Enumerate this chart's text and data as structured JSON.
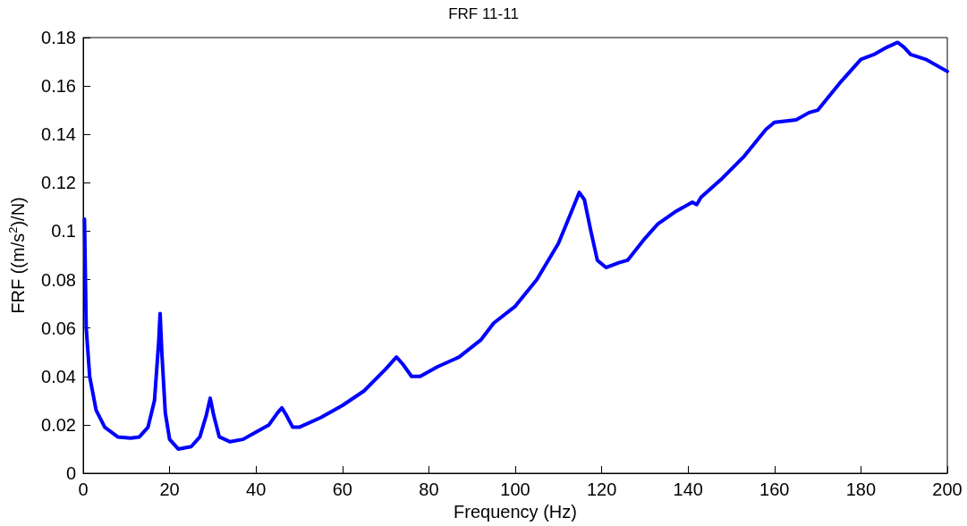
{
  "chart_data": {
    "type": "line",
    "title": "FRF 11-11",
    "xlabel": "Frequency (Hz)",
    "ylabel": "FRF ((m/s$^{2}$)/N)",
    "xlim": [
      0,
      200
    ],
    "xticks": [
      0,
      20,
      40,
      60,
      80,
      100,
      120,
      140,
      160,
      180,
      200
    ],
    "ylim": [
      0,
      0.18
    ],
    "yticks": [
      0,
      0.02,
      0.04,
      0.06,
      0.08,
      0.1,
      0.12,
      0.14,
      0.16,
      0.18
    ],
    "grid": false,
    "marker": "none",
    "line_style": "solid",
    "series": [
      {
        "color": "#0000ff",
        "x": [
          0.3,
          0.7,
          1.5,
          3,
          5,
          8,
          11,
          13,
          15,
          16.5,
          17.5,
          17.8,
          18.2,
          19,
          20,
          22,
          25,
          27,
          28.5,
          29.4,
          30.2,
          31.5,
          34,
          37,
          40,
          43,
          45,
          46,
          47,
          48.5,
          50,
          55,
          60,
          65,
          70,
          72.5,
          74,
          76,
          78,
          82,
          87,
          92,
          95,
          100,
          105,
          110,
          113,
          114.8,
          116,
          117.5,
          119,
          121,
          124,
          126,
          130,
          133,
          137,
          141,
          142,
          143,
          148,
          153,
          158,
          160,
          165,
          168,
          170,
          175,
          180,
          183,
          186,
          188.5,
          190,
          191.5,
          195,
          200
        ],
        "values": [
          0.105,
          0.06,
          0.04,
          0.026,
          0.019,
          0.015,
          0.0145,
          0.015,
          0.019,
          0.03,
          0.055,
          0.066,
          0.05,
          0.025,
          0.014,
          0.01,
          0.011,
          0.015,
          0.024,
          0.031,
          0.024,
          0.015,
          0.013,
          0.014,
          0.017,
          0.02,
          0.025,
          0.027,
          0.024,
          0.019,
          0.019,
          0.023,
          0.028,
          0.034,
          0.043,
          0.048,
          0.045,
          0.04,
          0.04,
          0.044,
          0.048,
          0.055,
          0.062,
          0.069,
          0.08,
          0.095,
          0.108,
          0.116,
          0.113,
          0.1,
          0.088,
          0.085,
          0.087,
          0.088,
          0.097,
          0.103,
          0.108,
          0.112,
          0.111,
          0.114,
          0.122,
          0.131,
          0.142,
          0.145,
          0.146,
          0.149,
          0.15,
          0.161,
          0.171,
          0.173,
          0.176,
          0.178,
          0.176,
          0.173,
          0.171,
          0.166
        ]
      }
    ]
  }
}
